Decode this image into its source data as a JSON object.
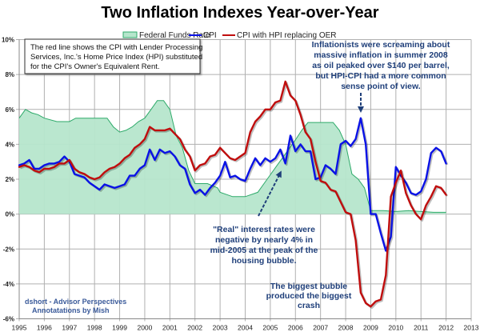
{
  "chart_data": {
    "type": "line",
    "title": "Two Inflation Indexes Year-over-Year",
    "xlabel": "",
    "ylabel": "",
    "xlim": [
      1995,
      2013
    ],
    "ylim": [
      -6,
      10
    ],
    "x_ticks": [
      "1995",
      "1996",
      "1997",
      "1998",
      "1999",
      "2000",
      "2001",
      "2002",
      "2003",
      "2004",
      "2005",
      "2006",
      "2007",
      "2008",
      "2009",
      "2010",
      "2011",
      "2012",
      "2013"
    ],
    "y_ticks": [
      {
        "value": 10,
        "label": "10%"
      },
      {
        "value": 8,
        "label": "8%"
      },
      {
        "value": 6,
        "label": "6%"
      },
      {
        "value": 4,
        "label": "4%"
      },
      {
        "value": 2,
        "label": "2%"
      },
      {
        "value": 0,
        "label": "0%"
      },
      {
        "value": -2,
        "label": "-2%"
      },
      {
        "value": -4,
        "label": "-4%"
      },
      {
        "value": -6,
        "label": "-6%"
      }
    ],
    "grid": true,
    "legend_position": "top-center",
    "series": [
      {
        "name": "Federal Funds Rate",
        "style": "area",
        "color": "#2eaa6a",
        "fill": "#b6e6cc",
        "x": [
          1995.0,
          1995.25,
          1995.5,
          1995.75,
          1996.0,
          1996.5,
          1997.0,
          1997.25,
          1997.5,
          1998.0,
          1998.5,
          1998.75,
          1999.0,
          1999.25,
          1999.5,
          1999.75,
          2000.0,
          2000.25,
          2000.5,
          2000.75,
          2001.0,
          2001.25,
          2001.5,
          2001.75,
          2002.0,
          2002.5,
          2002.9,
          2003.0,
          2003.5,
          2004.0,
          2004.5,
          2004.75,
          2005.0,
          2005.25,
          2005.5,
          2005.75,
          2006.0,
          2006.25,
          2006.5,
          2007.0,
          2007.5,
          2007.75,
          2008.0,
          2008.25,
          2008.5,
          2008.75,
          2009.0,
          2009.5,
          2010.0,
          2010.5,
          2011.0,
          2011.5,
          2012.0
        ],
        "values": [
          5.5,
          6.0,
          5.8,
          5.7,
          5.5,
          5.3,
          5.3,
          5.5,
          5.5,
          5.5,
          5.5,
          5.0,
          4.7,
          4.8,
          5.0,
          5.3,
          5.5,
          6.0,
          6.5,
          6.5,
          6.0,
          4.5,
          3.8,
          2.5,
          1.75,
          1.75,
          1.5,
          1.25,
          1.0,
          1.0,
          1.25,
          1.75,
          2.25,
          2.75,
          3.25,
          3.75,
          4.25,
          4.8,
          5.25,
          5.25,
          5.25,
          4.8,
          4.0,
          2.3,
          2.0,
          1.5,
          0.2,
          0.2,
          0.15,
          0.2,
          0.15,
          0.1,
          0.1
        ]
      },
      {
        "name": "CPI",
        "style": "line",
        "color": "#0a12e6",
        "x": [
          1995.0,
          1995.2,
          1995.4,
          1995.6,
          1995.8,
          1996.0,
          1996.2,
          1996.4,
          1996.6,
          1996.8,
          1997.0,
          1997.2,
          1997.4,
          1997.6,
          1997.8,
          1998.0,
          1998.2,
          1998.4,
          1998.6,
          1998.8,
          1999.0,
          1999.2,
          1999.4,
          1999.6,
          1999.8,
          2000.0,
          2000.2,
          2000.4,
          2000.6,
          2000.8,
          2001.0,
          2001.2,
          2001.4,
          2001.6,
          2001.8,
          2002.0,
          2002.2,
          2002.4,
          2002.6,
          2002.8,
          2003.0,
          2003.2,
          2003.4,
          2003.6,
          2003.8,
          2004.0,
          2004.2,
          2004.4,
          2004.6,
          2004.8,
          2005.0,
          2005.2,
          2005.4,
          2005.6,
          2005.8,
          2006.0,
          2006.2,
          2006.4,
          2006.6,
          2006.8,
          2007.0,
          2007.2,
          2007.4,
          2007.6,
          2007.8,
          2008.0,
          2008.2,
          2008.4,
          2008.6,
          2008.8,
          2009.0,
          2009.2,
          2009.4,
          2009.6,
          2009.8,
          2010.0,
          2010.2,
          2010.4,
          2010.6,
          2010.8,
          2011.0,
          2011.2,
          2011.4,
          2011.6,
          2011.8,
          2012.0
        ],
        "values": [
          2.8,
          2.9,
          3.1,
          2.6,
          2.6,
          2.8,
          2.9,
          2.9,
          3.0,
          3.3,
          3.0,
          2.3,
          2.2,
          2.1,
          1.8,
          1.6,
          1.4,
          1.7,
          1.6,
          1.5,
          1.6,
          1.7,
          2.2,
          2.2,
          2.6,
          2.8,
          3.7,
          3.1,
          3.7,
          3.5,
          3.6,
          3.3,
          2.8,
          2.6,
          1.7,
          1.2,
          1.4,
          1.1,
          1.5,
          1.8,
          2.2,
          3.0,
          2.1,
          2.2,
          2.0,
          1.9,
          2.6,
          3.2,
          2.8,
          3.2,
          3.0,
          3.2,
          3.7,
          2.9,
          4.5,
          3.6,
          4.0,
          3.6,
          3.6,
          2.0,
          2.1,
          2.8,
          2.6,
          2.3,
          4.0,
          4.2,
          3.9,
          4.3,
          5.5,
          4.0,
          0.0,
          0.0,
          -1.1,
          -2.1,
          -1.3,
          2.7,
          2.2,
          1.8,
          1.2,
          1.1,
          1.3,
          2.0,
          3.5,
          3.8,
          3.6,
          2.9
        ]
      },
      {
        "name": "CPI with HPI replacing OER",
        "style": "line",
        "color": "#c00d0d",
        "x": [
          1995.0,
          1995.2,
          1995.4,
          1995.6,
          1995.8,
          1996.0,
          1996.2,
          1996.4,
          1996.6,
          1996.8,
          1997.0,
          1997.2,
          1997.4,
          1997.6,
          1997.8,
          1998.0,
          1998.2,
          1998.4,
          1998.6,
          1998.8,
          1999.0,
          1999.2,
          1999.4,
          1999.6,
          1999.8,
          2000.0,
          2000.2,
          2000.4,
          2000.6,
          2000.8,
          2001.0,
          2001.2,
          2001.4,
          2001.6,
          2001.8,
          2002.0,
          2002.2,
          2002.4,
          2002.6,
          2002.8,
          2003.0,
          2003.2,
          2003.4,
          2003.6,
          2003.8,
          2004.0,
          2004.2,
          2004.4,
          2004.6,
          2004.8,
          2005.0,
          2005.2,
          2005.4,
          2005.6,
          2005.8,
          2006.0,
          2006.2,
          2006.4,
          2006.6,
          2006.8,
          2007.0,
          2007.2,
          2007.4,
          2007.6,
          2007.8,
          2008.0,
          2008.2,
          2008.4,
          2008.6,
          2008.8,
          2009.0,
          2009.2,
          2009.4,
          2009.6,
          2009.8,
          2010.0,
          2010.2,
          2010.4,
          2010.6,
          2010.8,
          2011.0,
          2011.2,
          2011.4,
          2011.6,
          2011.8,
          2012.0
        ],
        "values": [
          2.7,
          2.8,
          2.7,
          2.5,
          2.4,
          2.6,
          2.6,
          2.7,
          2.9,
          2.9,
          3.1,
          2.6,
          2.4,
          2.3,
          2.1,
          2.0,
          2.1,
          2.4,
          2.6,
          2.7,
          2.9,
          3.2,
          3.4,
          3.8,
          4.0,
          4.3,
          5.0,
          4.8,
          4.8,
          4.8,
          4.9,
          4.6,
          4.3,
          3.7,
          3.3,
          2.5,
          2.8,
          2.9,
          3.3,
          3.4,
          3.8,
          3.5,
          3.2,
          3.1,
          3.3,
          3.5,
          4.7,
          5.3,
          5.6,
          6.0,
          6.0,
          6.4,
          6.5,
          7.6,
          6.8,
          6.5,
          5.7,
          4.7,
          4.3,
          3.0,
          1.9,
          1.8,
          1.4,
          1.3,
          0.7,
          0.1,
          0.0,
          -1.5,
          -4.5,
          -5.1,
          -5.3,
          -5.0,
          -4.9,
          -3.5,
          1.0,
          1.8,
          2.5,
          1.2,
          0.5,
          0.0,
          -0.3,
          0.5,
          1.0,
          1.6,
          1.5,
          1.1
        ]
      }
    ],
    "annotations": [
      {
        "name": "note-box",
        "lines": [
          "The red line shows the CPI with Lender Processing",
          "Services, Inc.'s  Home Price Index (HPI) substituted",
          "for the CPI's Owner's Equivalent Rent."
        ]
      },
      {
        "name": "inflationists-note",
        "lines": [
          "Inflationists were screaming about",
          "massive inflation in summer 2008",
          "as oil peaked over $140 per barrel,",
          "but HPI-CPI had a more common",
          "sense point of view."
        ],
        "points_to": {
          "x": 2008.6,
          "y": 5.6
        }
      },
      {
        "name": "real-rates-note",
        "lines": [
          "\"Real\" interest rates were",
          "negative by nearly 4% in",
          "mid-2005 at the peak of the",
          "housing bubble."
        ],
        "points_to": {
          "x": 2005.5,
          "y": 3.0
        }
      },
      {
        "name": "bubble-note",
        "lines": [
          "The biggest bubble",
          "produced the biggest",
          "crash"
        ]
      },
      {
        "name": "credit",
        "lines": [
          "dshort - Advisor Perspectives",
          "Annotatations by Mish"
        ]
      }
    ]
  }
}
